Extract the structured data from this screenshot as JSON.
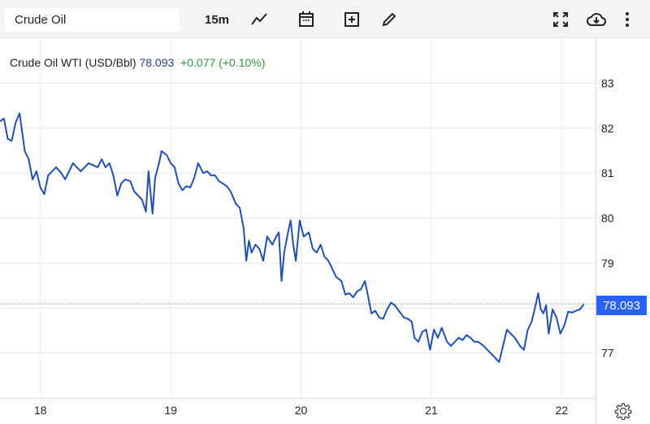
{
  "toolbar": {
    "symbol_value": "Crude Oil",
    "interval": "15m",
    "icons": [
      "chart-type-line-icon",
      "calendar-icon",
      "add-indicator-icon",
      "draw-pencil-icon",
      "fullscreen-icon",
      "cloud-download-icon",
      "more-vertical-icon"
    ]
  },
  "legend": {
    "name": "Crude Oil WTI (USD/Bbl)",
    "price": "78.093",
    "change": "+0.077 (+0.10%)"
  },
  "price_badge": "78.093",
  "colors": {
    "line": "#1f4fbf",
    "badge": "#2962ff",
    "change": "#2e9a3e",
    "price": "#2a3f8f"
  },
  "chart_data": {
    "type": "line",
    "title": "",
    "xlabel": "",
    "ylabel": "",
    "x_ticks": [
      "18",
      "19",
      "20",
      "21",
      "22"
    ],
    "y_ticks": [
      "77",
      "78",
      "79",
      "80",
      "81",
      "82",
      "83"
    ],
    "xlim": [
      17.69,
      22.26
    ],
    "ylim": [
      76,
      84
    ],
    "grid": true,
    "last_value": 78.093,
    "series": [
      {
        "points": [
          [
            17.69,
            82.15
          ],
          [
            17.72,
            82.21
          ],
          [
            17.75,
            81.76
          ],
          [
            17.78,
            81.72
          ],
          [
            17.81,
            82.12
          ],
          [
            17.84,
            82.33
          ],
          [
            17.88,
            81.49
          ],
          [
            17.91,
            81.31
          ],
          [
            17.94,
            80.86
          ],
          [
            17.97,
            81.04
          ],
          [
            18.0,
            80.68
          ],
          [
            18.03,
            80.53
          ],
          [
            18.06,
            80.95
          ],
          [
            18.09,
            81.04
          ],
          [
            18.12,
            81.13
          ],
          [
            18.16,
            81.0
          ],
          [
            18.19,
            80.86
          ],
          [
            18.22,
            81.04
          ],
          [
            18.25,
            81.22
          ],
          [
            18.28,
            81.13
          ],
          [
            18.31,
            81.04
          ],
          [
            18.34,
            81.13
          ],
          [
            18.37,
            81.22
          ],
          [
            18.44,
            81.13
          ],
          [
            18.47,
            81.31
          ],
          [
            18.5,
            81.13
          ],
          [
            18.53,
            81.22
          ],
          [
            18.56,
            80.95
          ],
          [
            18.59,
            80.5
          ],
          [
            18.62,
            80.77
          ],
          [
            18.65,
            80.86
          ],
          [
            18.69,
            80.82
          ],
          [
            18.72,
            80.59
          ],
          [
            18.75,
            80.5
          ],
          [
            18.78,
            80.41
          ],
          [
            18.81,
            80.14
          ],
          [
            18.83,
            81.04
          ],
          [
            18.86,
            80.1
          ],
          [
            18.88,
            80.89
          ],
          [
            18.91,
            81.22
          ],
          [
            18.93,
            81.49
          ],
          [
            18.97,
            81.4
          ],
          [
            19.0,
            81.22
          ],
          [
            19.03,
            81.13
          ],
          [
            19.06,
            80.77
          ],
          [
            19.09,
            80.62
          ],
          [
            19.12,
            80.71
          ],
          [
            19.15,
            80.68
          ],
          [
            19.18,
            80.89
          ],
          [
            19.21,
            81.22
          ],
          [
            19.25,
            81.0
          ],
          [
            19.28,
            81.04
          ],
          [
            19.31,
            80.95
          ],
          [
            19.34,
            80.95
          ],
          [
            19.37,
            80.82
          ],
          [
            19.4,
            80.77
          ],
          [
            19.43,
            80.71
          ],
          [
            19.46,
            80.59
          ],
          [
            19.5,
            80.32
          ],
          [
            19.53,
            80.23
          ],
          [
            19.56,
            79.77
          ],
          [
            19.58,
            79.05
          ],
          [
            19.6,
            79.5
          ],
          [
            19.62,
            79.23
          ],
          [
            19.65,
            79.41
          ],
          [
            19.68,
            79.32
          ],
          [
            19.71,
            79.05
          ],
          [
            19.74,
            79.59
          ],
          [
            19.78,
            79.41
          ],
          [
            19.81,
            79.59
          ],
          [
            19.83,
            79.68
          ],
          [
            19.85,
            78.6
          ],
          [
            19.87,
            79.23
          ],
          [
            19.9,
            79.68
          ],
          [
            19.92,
            79.95
          ],
          [
            19.94,
            79.41
          ],
          [
            19.96,
            79.05
          ],
          [
            19.99,
            79.95
          ],
          [
            20.02,
            79.59
          ],
          [
            20.06,
            79.68
          ],
          [
            20.09,
            79.32
          ],
          [
            20.12,
            79.23
          ],
          [
            20.15,
            79.41
          ],
          [
            20.18,
            79.14
          ],
          [
            20.21,
            79.05
          ],
          [
            20.24,
            78.87
          ],
          [
            20.27,
            78.69
          ],
          [
            20.31,
            78.6
          ],
          [
            20.34,
            78.3
          ],
          [
            20.37,
            78.33
          ],
          [
            20.4,
            78.24
          ],
          [
            20.43,
            78.37
          ],
          [
            20.46,
            78.42
          ],
          [
            20.49,
            78.6
          ],
          [
            20.51,
            78.33
          ],
          [
            20.54,
            77.88
          ],
          [
            20.57,
            77.94
          ],
          [
            20.6,
            77.79
          ],
          [
            20.63,
            77.76
          ],
          [
            20.66,
            77.97
          ],
          [
            20.69,
            78.12
          ],
          [
            20.72,
            78.06
          ],
          [
            20.75,
            77.94
          ],
          [
            20.79,
            77.79
          ],
          [
            20.82,
            77.76
          ],
          [
            20.85,
            77.7
          ],
          [
            20.87,
            77.34
          ],
          [
            20.9,
            77.25
          ],
          [
            20.93,
            77.47
          ],
          [
            20.96,
            77.52
          ],
          [
            20.99,
            77.07
          ],
          [
            21.02,
            77.52
          ],
          [
            21.05,
            77.34
          ],
          [
            21.08,
            77.56
          ],
          [
            21.12,
            77.25
          ],
          [
            21.15,
            77.16
          ],
          [
            21.18,
            77.25
          ],
          [
            21.21,
            77.34
          ],
          [
            21.24,
            77.29
          ],
          [
            21.27,
            77.4
          ],
          [
            21.3,
            77.34
          ],
          [
            21.33,
            77.25
          ],
          [
            21.36,
            77.25
          ],
          [
            21.4,
            77.16
          ],
          [
            21.43,
            77.07
          ],
          [
            21.46,
            76.98
          ],
          [
            21.49,
            76.89
          ],
          [
            21.52,
            76.8
          ],
          [
            21.55,
            77.16
          ],
          [
            21.58,
            77.52
          ],
          [
            21.61,
            77.43
          ],
          [
            21.64,
            77.34
          ],
          [
            21.68,
            77.16
          ],
          [
            21.71,
            77.07
          ],
          [
            21.74,
            77.52
          ],
          [
            21.77,
            77.7
          ],
          [
            21.8,
            78.06
          ],
          [
            21.82,
            78.33
          ],
          [
            21.84,
            77.97
          ],
          [
            21.86,
            77.88
          ],
          [
            21.88,
            78.06
          ],
          [
            21.9,
            77.43
          ],
          [
            21.93,
            77.97
          ],
          [
            21.96,
            77.79
          ],
          [
            21.99,
            77.43
          ],
          [
            22.02,
            77.61
          ],
          [
            22.05,
            77.92
          ],
          [
            22.08,
            77.9
          ],
          [
            22.11,
            77.94
          ],
          [
            22.14,
            77.97
          ],
          [
            22.17,
            78.09
          ]
        ]
      }
    ]
  }
}
